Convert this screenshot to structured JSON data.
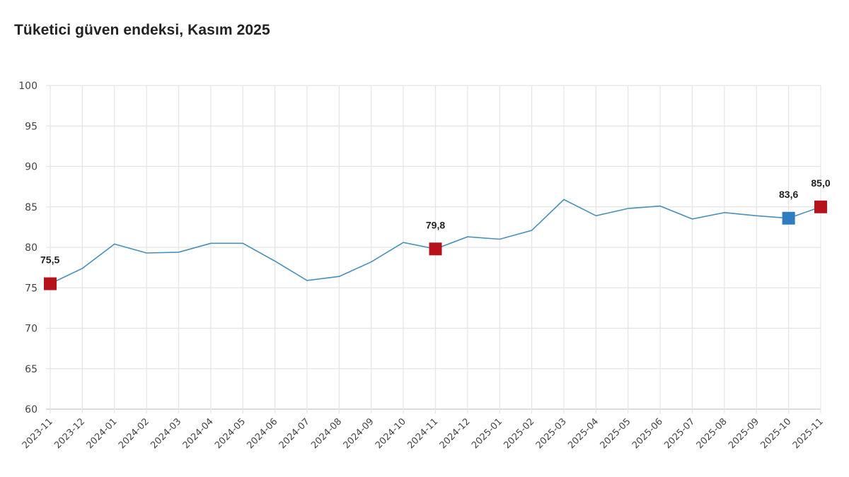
{
  "chart_data": {
    "type": "line",
    "title": "Tüketici güven endeksi, Kasım 2025",
    "xlabel": "",
    "ylabel": "",
    "ylim": [
      60,
      100
    ],
    "yticks": [
      60,
      65,
      70,
      75,
      80,
      85,
      90,
      95,
      100
    ],
    "grid": true,
    "legend": null,
    "categories": [
      "2023-11",
      "2023-12",
      "2024-01",
      "2024-02",
      "2024-03",
      "2024-04",
      "2024-05",
      "2024-06",
      "2024-07",
      "2024-08",
      "2024-09",
      "2024-10",
      "2024-11",
      "2024-12",
      "2025-01",
      "2025-02",
      "2025-03",
      "2025-04",
      "2025-05",
      "2025-06",
      "2025-07",
      "2025-08",
      "2025-09",
      "2025-10",
      "2025-11"
    ],
    "series": [
      {
        "name": "Tüketici güven endeksi",
        "color": "#4a8fb8",
        "values": [
          75.5,
          77.4,
          80.4,
          79.3,
          79.4,
          80.5,
          80.5,
          78.3,
          75.9,
          76.4,
          78.2,
          80.6,
          79.8,
          81.3,
          81.0,
          82.1,
          85.9,
          83.9,
          84.8,
          85.1,
          83.5,
          84.3,
          83.9,
          83.6,
          85.0
        ]
      }
    ],
    "highlighted_points": [
      {
        "category": "2023-11",
        "value": 75.5,
        "label": "75,5",
        "color": "#b5121b"
      },
      {
        "category": "2024-11",
        "value": 79.8,
        "label": "79,8",
        "color": "#b5121b"
      },
      {
        "category": "2025-10",
        "value": 83.6,
        "label": "83,6",
        "color": "#2f7dc0"
      },
      {
        "category": "2025-11",
        "value": 85.0,
        "label": "85,0",
        "color": "#b5121b"
      }
    ]
  }
}
